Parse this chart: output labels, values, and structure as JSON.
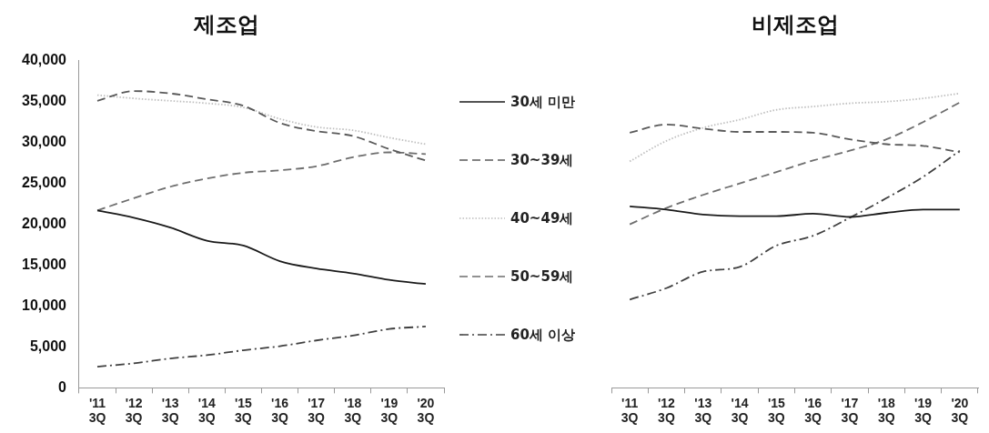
{
  "chart_data": [
    {
      "type": "line",
      "title": "제조업",
      "categories": [
        "'11 3Q",
        "'12 3Q",
        "'13 3Q",
        "'14 3Q",
        "'15 3Q",
        "'16 3Q",
        "'17 3Q",
        "'18 3Q",
        "'19 3Q",
        "'20 3Q"
      ],
      "ylim": [
        0,
        40000
      ],
      "yticks": [
        0,
        {
          "value": 5000,
          "label": "5,000"
        },
        {
          "value": 10000,
          "label": "10,000"
        },
        {
          "value": 15000,
          "label": "15,000"
        },
        {
          "value": 20000,
          "label": "20,000"
        },
        {
          "value": 25000,
          "label": "25,000"
        },
        {
          "value": 30000,
          "label": "30,000"
        },
        {
          "value": 35000,
          "label": "35,000"
        },
        {
          "value": 40000,
          "label": "40,000"
        }
      ],
      "grid": false,
      "legend": "right",
      "marker": "none",
      "series": [
        {
          "name": "30세 미만",
          "color": "#1a1a1a",
          "line_style": "solid",
          "values": [
            21700,
            20800,
            19600,
            18000,
            17400,
            15500,
            14600,
            14000,
            13200,
            12700
          ]
        },
        {
          "name": "30~39세",
          "color": "#595959",
          "line_style": "dashed",
          "values": [
            35100,
            36300,
            36000,
            35300,
            34500,
            32400,
            31400,
            30800,
            29200,
            27800
          ]
        },
        {
          "name": "40~49세",
          "color": "#bfbfbf",
          "line_style": "dotted",
          "values": [
            35800,
            35400,
            35100,
            34800,
            34300,
            32900,
            31900,
            31500,
            30600,
            29800
          ]
        },
        {
          "name": "50~59세",
          "color": "#6e6e6e",
          "line_style": "dashed",
          "values": [
            21700,
            23200,
            24600,
            25600,
            26300,
            26600,
            27100,
            28200,
            28800,
            28600
          ]
        },
        {
          "name": "60세 이상",
          "color": "#404040",
          "line_style": "dashdot",
          "values": [
            2600,
            3000,
            3600,
            4000,
            4600,
            5100,
            5800,
            6400,
            7200,
            7500
          ]
        }
      ]
    },
    {
      "type": "line",
      "title": "비제조업",
      "categories": [
        "'11 3Q",
        "'12 3Q",
        "'13 3Q",
        "'14 3Q",
        "'15 3Q",
        "'16 3Q",
        "'17 3Q",
        "'18 3Q",
        "'19 3Q",
        "'20 3Q"
      ],
      "ylim": [
        0,
        40000
      ],
      "tick_labels": "x",
      "grid": false,
      "marker": "none",
      "series": [
        {
          "color": "#1a1a1a",
          "line_style": "solid",
          "values": [
            22200,
            21800,
            21200,
            21000,
            21000,
            21300,
            20900,
            21400,
            21800,
            21800
          ]
        },
        {
          "color": "#595959",
          "line_style": "dashed",
          "values": [
            31200,
            32200,
            31700,
            31300,
            31300,
            31200,
            30400,
            29800,
            29600,
            28800
          ]
        },
        {
          "color": "#bfbfbf",
          "line_style": "dotted",
          "values": [
            27700,
            30200,
            31800,
            32800,
            34000,
            34400,
            34800,
            35000,
            35400,
            36000
          ]
        },
        {
          "color": "#6e6e6e",
          "line_style": "dashed",
          "values": [
            20000,
            22000,
            23600,
            25000,
            26400,
            27800,
            29000,
            30400,
            32500,
            34900
          ]
        },
        {
          "color": "#404040",
          "line_style": "dashdot",
          "values": [
            10800,
            12200,
            14200,
            14800,
            17400,
            18600,
            20800,
            23200,
            25800,
            29000
          ]
        }
      ]
    }
  ]
}
